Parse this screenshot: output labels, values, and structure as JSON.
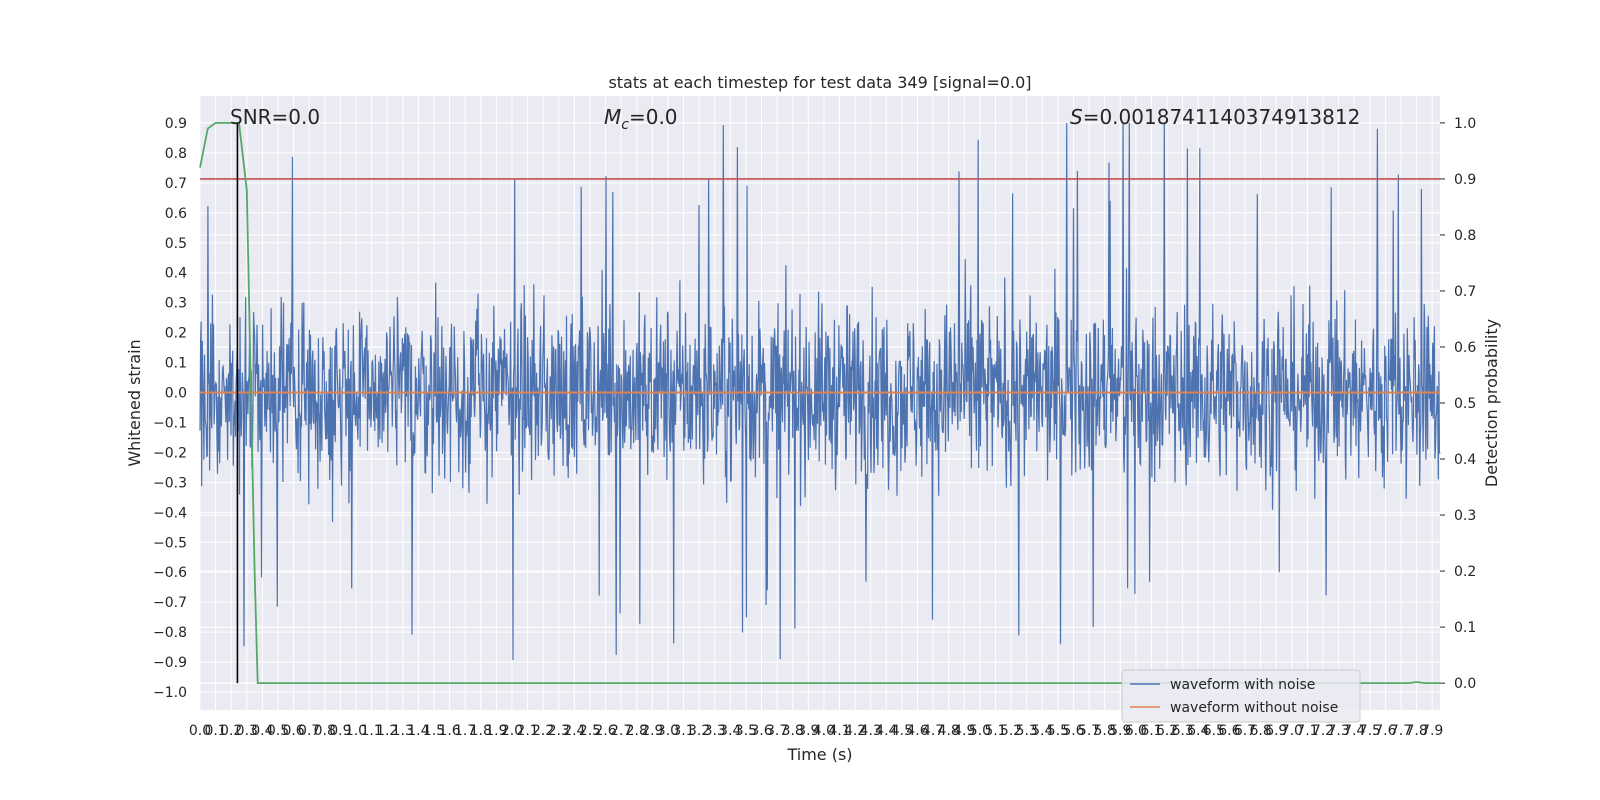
{
  "chart_data": {
    "type": "line",
    "title": "stats at each timestep for test data 349 [signal=0.0]",
    "xlabel": "Time (s)",
    "ylabel": "Whitened strain",
    "y2label": "Detection probability",
    "xlim": [
      0.0,
      7.95
    ],
    "ylim": [
      -1.06,
      0.99
    ],
    "y2lim": [
      -0.048,
      1.048
    ],
    "x_ticks": [
      "0.0",
      "0.1",
      "0.2",
      "0.3",
      "0.4",
      "0.5",
      "0.6",
      "0.7",
      "0.8",
      "0.9",
      "1.0",
      "1.1",
      "1.2",
      "1.3",
      "1.4",
      "1.5",
      "1.6",
      "1.7",
      "1.8",
      "1.9",
      "2.0",
      "2.1",
      "2.2",
      "2.3",
      "2.4",
      "2.5",
      "2.6",
      "2.7",
      "2.8",
      "2.9",
      "3.0",
      "3.1",
      "3.2",
      "3.3",
      "3.4",
      "3.5",
      "3.6",
      "3.7",
      "3.8",
      "3.9",
      "4.0",
      "4.1",
      "4.2",
      "4.3",
      "4.4",
      "4.5",
      "4.6",
      "4.7",
      "4.8",
      "4.9",
      "5.0",
      "5.1",
      "5.2",
      "5.3",
      "5.4",
      "5.5",
      "5.6",
      "5.7",
      "5.8",
      "5.9",
      "6.0",
      "6.1",
      "6.2",
      "6.3",
      "6.4",
      "6.5",
      "6.6",
      "6.7",
      "6.8",
      "6.9",
      "7.0",
      "7.1",
      "7.2",
      "7.3",
      "7.4",
      "7.5",
      "7.6",
      "7.7",
      "7.8",
      "7.9"
    ],
    "y_ticks": [
      "0.9",
      "0.8",
      "0.7",
      "0.6",
      "0.5",
      "0.4",
      "0.3",
      "0.2",
      "0.1",
      "0.0",
      "−0.1",
      "−0.2",
      "−0.3",
      "−0.4",
      "−0.5",
      "−0.6",
      "−0.7",
      "−0.8",
      "−0.9",
      "−1.0"
    ],
    "y2_ticks": [
      "1.0",
      "0.9",
      "0.8",
      "0.7",
      "0.6",
      "0.5",
      "0.4",
      "0.3",
      "0.2",
      "0.1",
      "0.0"
    ],
    "annotations": {
      "snr": "SNR=0.0",
      "mc_symbol": "M",
      "mc_sub": "c",
      "mc_value": "=0.0",
      "s_symbol": "S",
      "s_value": "=0.0018741140374913812"
    },
    "series": [
      {
        "name": "waveform with noise",
        "color": "#4c72b0",
        "description": "dense noise, roughly ±0.5 envelope with spikes to ±0.9"
      },
      {
        "name": "waveform without noise",
        "color": "#dd8452",
        "values_constant": 0.0
      },
      {
        "color": "#55a868",
        "axis": "y2",
        "x": [
          0.0,
          0.05,
          0.1,
          0.15,
          0.2,
          0.25,
          0.3,
          0.35,
          0.37,
          0.4,
          0.45,
          7.75,
          7.8,
          7.85,
          7.95
        ],
        "y": [
          0.92,
          0.99,
          1.0,
          1.0,
          1.0,
          1.0,
          0.88,
          0.2,
          0.0,
          0.0,
          0.0,
          0.0,
          0.002,
          0.0,
          0.0
        ]
      }
    ],
    "threshold_line": {
      "axis": "y2",
      "value": 0.9,
      "color": "#c44e52"
    },
    "vertical_line": {
      "x": 0.24,
      "color": "#000000"
    },
    "legend_placement": "lower-right",
    "grid": true
  }
}
